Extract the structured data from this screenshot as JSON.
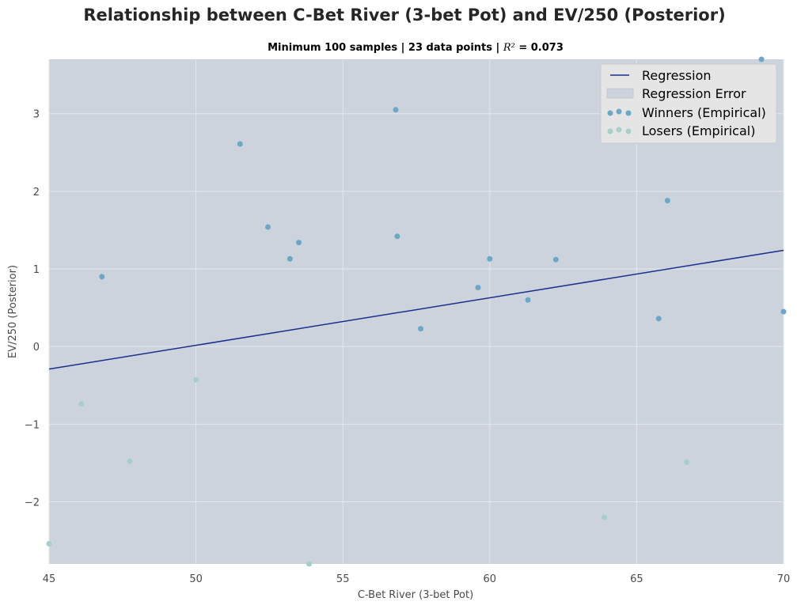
{
  "chart_data": {
    "type": "scatter",
    "title": "Relationship between C-Bet River (3-bet Pot) and EV/250 (Posterior)",
    "subtitle": {
      "prefix": "Minimum 100 samples | 23 data points | ",
      "r2_symbol": "R²",
      "r2_text": "  =  0.073"
    },
    "xlabel": "C-Bet River (3-bet Pot)",
    "ylabel": "EV/250 (Posterior)",
    "xlim": [
      45,
      70
    ],
    "ylim": [
      -2.8,
      3.7
    ],
    "xticks": [
      45,
      50,
      55,
      60,
      65,
      70
    ],
    "yticks": [
      -2,
      -1,
      0,
      1,
      2,
      3
    ],
    "xtick_labels": [
      "45",
      "50",
      "55",
      "60",
      "65",
      "70"
    ],
    "ytick_labels": [
      "−2",
      "−1",
      "0",
      "1",
      "2",
      "3"
    ],
    "grid": true,
    "legend_position": "top-right",
    "regression": {
      "name": "Regression",
      "x": [
        45,
        70
      ],
      "y": [
        -0.29,
        1.24
      ],
      "color": "#1a2f8c"
    },
    "regression_error": {
      "name": "Regression Error",
      "color": "#cdd3dc"
    },
    "series": [
      {
        "name": "Winners (Empirical)",
        "color": "#6ba8c8",
        "points": [
          [
            46.8,
            0.9
          ],
          [
            51.5,
            2.61
          ],
          [
            52.45,
            1.54
          ],
          [
            53.2,
            1.13
          ],
          [
            53.5,
            1.34
          ],
          [
            56.8,
            3.05
          ],
          [
            56.85,
            1.42
          ],
          [
            57.65,
            0.23
          ],
          [
            59.6,
            0.76
          ],
          [
            60.0,
            1.13
          ],
          [
            61.3,
            0.6
          ],
          [
            62.25,
            1.12
          ],
          [
            65.75,
            0.36
          ],
          [
            66.05,
            1.88
          ],
          [
            69.25,
            3.7
          ],
          [
            70.0,
            0.45
          ]
        ]
      },
      {
        "name": "Losers (Empirical)",
        "color": "#a6cfc8",
        "points": [
          [
            45.0,
            -2.54
          ],
          [
            46.1,
            -0.74
          ],
          [
            47.75,
            -1.48
          ],
          [
            50.0,
            -0.43
          ],
          [
            53.85,
            -2.8
          ],
          [
            63.9,
            -2.2
          ],
          [
            66.7,
            -1.49
          ]
        ]
      }
    ]
  }
}
